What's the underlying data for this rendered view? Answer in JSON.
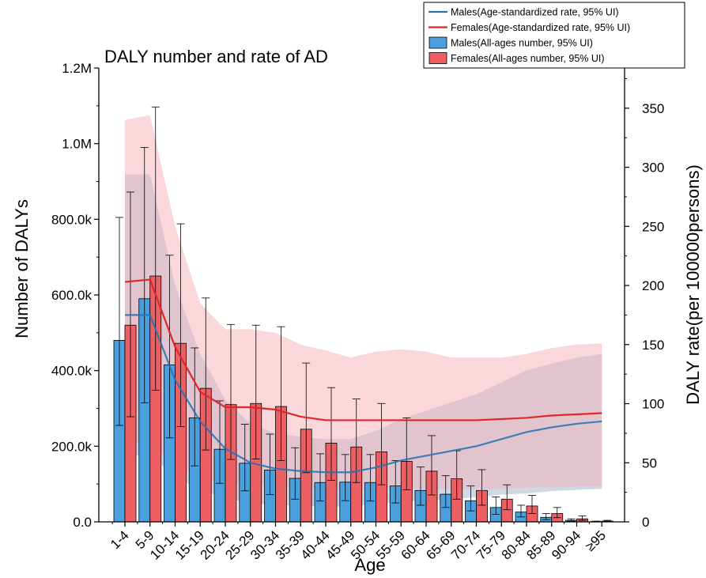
{
  "chart_data": {
    "type": "bar",
    "title": "DALY number and rate of AD",
    "xlabel": "Age",
    "ylabel_left": "Number of DALYs",
    "ylabel_right": "DALY rate(per 100000persons)",
    "categories": [
      "1-4",
      "5-9",
      "10-14",
      "15-19",
      "20-24",
      "25-29",
      "30-34",
      "35-39",
      "40-44",
      "45-49",
      "50-54",
      "55-59",
      "60-64",
      "65-69",
      "70-74",
      "75-79",
      "80-84",
      "85-89",
      "90-94",
      "≥95"
    ],
    "left_axis": {
      "min": 0,
      "max": 1200000,
      "ticks": [
        0,
        200000,
        400000,
        600000,
        800000,
        1000000,
        1200000
      ],
      "tick_labels": [
        "0.0",
        "200.0k",
        "400.0k",
        "600.0k",
        "800.0k",
        "1.0M",
        "1.2M"
      ]
    },
    "right_axis": {
      "min": 0,
      "max": 384,
      "ticks": [
        0,
        50,
        100,
        150,
        200,
        250,
        300,
        350
      ],
      "tick_labels": [
        "0",
        "50",
        "100",
        "150",
        "200",
        "250",
        "300",
        "350"
      ]
    },
    "bar_series": [
      {
        "name": "Males(All-ages number, 95% UI)",
        "color": "#4a9fdc",
        "values": [
          480000,
          590000,
          415000,
          275000,
          192000,
          155000,
          137000,
          115000,
          104000,
          105000,
          104000,
          95000,
          83000,
          73000,
          56000,
          38000,
          26000,
          12000,
          4000,
          1000
        ],
        "upper": [
          805000,
          990000,
          705000,
          460000,
          320000,
          258000,
          232000,
          196000,
          180000,
          178000,
          178000,
          162000,
          145000,
          122000,
          95000,
          66000,
          44000,
          22000,
          8000,
          2000
        ],
        "lower": [
          255000,
          315000,
          222000,
          148000,
          102000,
          82000,
          72000,
          60000,
          55000,
          56000,
          55000,
          50000,
          44000,
          38000,
          29000,
          20000,
          13000,
          6000,
          2000,
          500
        ]
      },
      {
        "name": "Females(All-ages number, 95% UI)",
        "color": "#ec5f63",
        "values": [
          520000,
          650000,
          472000,
          353000,
          310000,
          313000,
          305000,
          245000,
          208000,
          198000,
          185000,
          160000,
          134000,
          114000,
          83000,
          60000,
          42000,
          22000,
          8000,
          2000
        ],
        "upper": [
          872000,
          1097000,
          788000,
          592000,
          522000,
          520000,
          516000,
          420000,
          355000,
          325000,
          313000,
          275000,
          228000,
          188000,
          138000,
          98000,
          70000,
          38000,
          16000,
          4000
        ],
        "lower": [
          278000,
          348000,
          252000,
          190000,
          165000,
          166000,
          162000,
          130000,
          110000,
          104000,
          98000,
          85000,
          71000,
          60000,
          44000,
          32000,
          22000,
          11000,
          4000,
          1000
        ]
      }
    ],
    "line_series": [
      {
        "name": "Males(Age-standardized rate, 95% UI)",
        "color": "#2072b5",
        "band_color": "#9fb2cc",
        "values": [
          175,
          175,
          120,
          85,
          62,
          50,
          45,
          43,
          42,
          42,
          46,
          52,
          56,
          60,
          64,
          70,
          76,
          80,
          83,
          85
        ],
        "upper": [
          294,
          294,
          200,
          142,
          103,
          83,
          75,
          72,
          70,
          70,
          77,
          87,
          94,
          101,
          108,
          118,
          128,
          134,
          139,
          142
        ],
        "lower": [
          56,
          56,
          38,
          27,
          20,
          16,
          14,
          14,
          13,
          13,
          15,
          17,
          18,
          19,
          21,
          23,
          24,
          26,
          27,
          28
        ]
      },
      {
        "name": "Females(Age-standardized rate, 95% UI)",
        "color": "#e0262b",
        "band_color": "#f4b0b5",
        "values": [
          203,
          205,
          148,
          110,
          97,
          97,
          95,
          89,
          86,
          86,
          86,
          86,
          86,
          86,
          86,
          87,
          88,
          90,
          91,
          92
        ],
        "upper": [
          340,
          344,
          250,
          185,
          163,
          163,
          160,
          150,
          145,
          139,
          144,
          146,
          144,
          139,
          139,
          139,
          142,
          147,
          150,
          151
        ],
        "lower": [
          66,
          67,
          48,
          36,
          32,
          32,
          31,
          29,
          28,
          28,
          28,
          28,
          28,
          28,
          28,
          28,
          29,
          29,
          30,
          30
        ]
      }
    ],
    "legend": {
      "position": "top-right",
      "items": [
        {
          "label": "Males(Age-standardized rate, 95% UI)",
          "kind": "line",
          "color": "#2072b5"
        },
        {
          "label": "Females(Age-standardized rate, 95% UI)",
          "kind": "line",
          "color": "#e0262b"
        },
        {
          "label": "Males(All-ages number, 95% UI)",
          "kind": "box",
          "color": "#4a9fdc"
        },
        {
          "label": "Females(All-ages number, 95% UI)",
          "kind": "box",
          "color": "#ec5f63"
        }
      ]
    },
    "grid": false
  }
}
